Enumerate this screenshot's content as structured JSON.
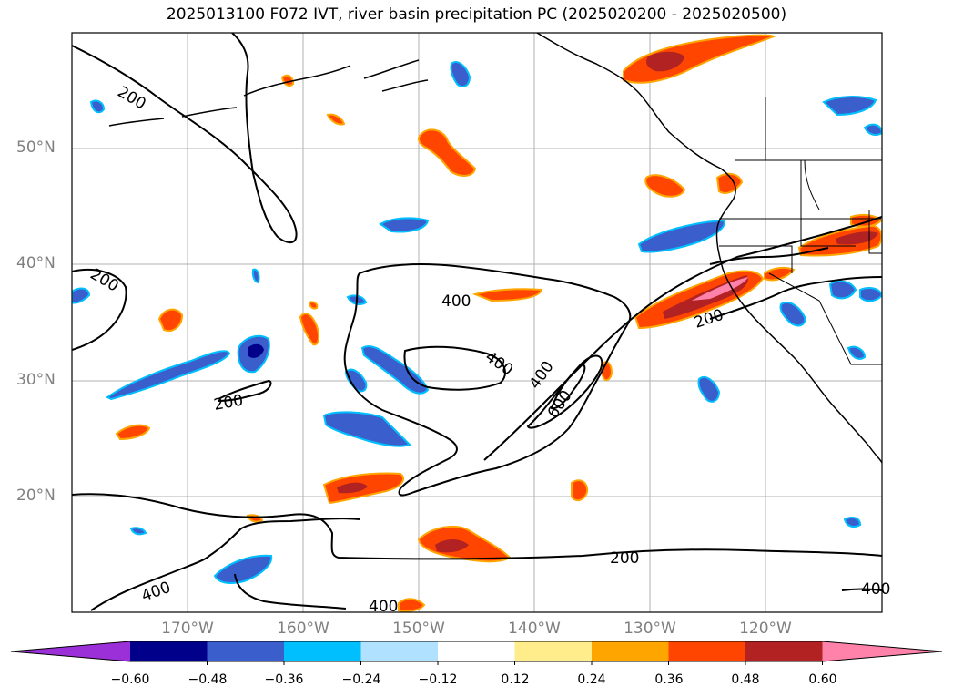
{
  "title": "2025013100 F072 IVT, river basin precipitation PC (2025020200 - 2025020500)",
  "lat_labels": [
    "50°N",
    "40°N",
    "30°N",
    "20°N"
  ],
  "lon_labels": [
    "170°W",
    "160°W",
    "150°W",
    "140°W",
    "130°W",
    "120°W"
  ],
  "contour_labels": [
    "200",
    "200",
    "200",
    "200",
    "200",
    "400",
    "400",
    "400",
    "600",
    "400",
    "400",
    "400"
  ],
  "colorbar": {
    "ticks": [
      "−0.60",
      "−0.48",
      "−0.36",
      "−0.24",
      "−0.12",
      "0.12",
      "0.24",
      "0.36",
      "0.48",
      "0.60"
    ],
    "colors": [
      "#9b30d9",
      "#00008b",
      "#3a5fcd",
      "#00bfff",
      "#b0e2ff",
      "#ffffff",
      "#ffec8b",
      "#ffa500",
      "#ff4500",
      "#b22222",
      "#ff82ab"
    ]
  }
}
